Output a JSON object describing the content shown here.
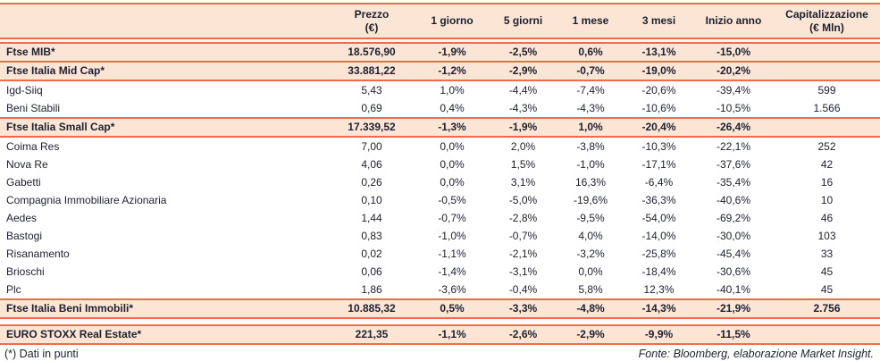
{
  "colors": {
    "accent_border": "#F2694C",
    "row_highlight": "#FBE6D6",
    "text": "#1D1F2E"
  },
  "table": {
    "columns": [
      {
        "l1": "",
        "l2": ""
      },
      {
        "l1": "Prezzo",
        "l2": "(€)"
      },
      {
        "l1": "1 giorno",
        "l2": ""
      },
      {
        "l1": "5 giorni",
        "l2": ""
      },
      {
        "l1": "1 mese",
        "l2": ""
      },
      {
        "l1": "3 mesi",
        "l2": ""
      },
      {
        "l1": "Inizio anno",
        "l2": ""
      },
      {
        "l1": "Capitalizzazione",
        "l2": "(€ Mln)"
      }
    ],
    "rows": [
      {
        "name": "Ftse MIB*",
        "type": "index",
        "values": [
          "18.576,90",
          "-1,9%",
          "-2,5%",
          "0,6%",
          "-13,1%",
          "-15,0%",
          ""
        ]
      },
      {
        "name": "Ftse Italia Mid Cap*",
        "type": "index",
        "values": [
          "33.881,22",
          "-1,2%",
          "-2,9%",
          "-0,7%",
          "-19,0%",
          "-20,2%",
          ""
        ]
      },
      {
        "name": "Igd-Siiq",
        "type": "stock",
        "values": [
          "5,43",
          "1,0%",
          "-4,4%",
          "-7,4%",
          "-20,6%",
          "-39,4%",
          "599"
        ]
      },
      {
        "name": "Beni Stabili",
        "type": "stock",
        "values": [
          "0,69",
          "0,4%",
          "-4,3%",
          "-4,3%",
          "-10,6%",
          "-10,5%",
          "1.566"
        ]
      },
      {
        "name": "Ftse Italia Small Cap*",
        "type": "index",
        "values": [
          "17.339,52",
          "-1,3%",
          "-1,9%",
          "1,0%",
          "-20,4%",
          "-26,4%",
          ""
        ]
      },
      {
        "name": "Coima Res",
        "type": "stock",
        "values": [
          "7,00",
          "0,0%",
          "2,0%",
          "-3,8%",
          "-10,3%",
          "-22,1%",
          "252"
        ]
      },
      {
        "name": "Nova Re",
        "type": "stock",
        "values": [
          "4,06",
          "0,0%",
          "1,5%",
          "-1,0%",
          "-17,1%",
          "-37,6%",
          "42"
        ]
      },
      {
        "name": "Gabetti",
        "type": "stock",
        "values": [
          "0,26",
          "0,0%",
          "3,1%",
          "16,3%",
          "-6,4%",
          "-35,4%",
          "16"
        ]
      },
      {
        "name": "Compagnia Immobiliare Azionaria",
        "type": "stock",
        "values": [
          "0,10",
          "-0,5%",
          "-5,0%",
          "-19,6%",
          "-36,3%",
          "-40,6%",
          "10"
        ]
      },
      {
        "name": "Aedes",
        "type": "stock",
        "values": [
          "1,44",
          "-0,7%",
          "-2,8%",
          "-9,5%",
          "-54,0%",
          "-69,2%",
          "46"
        ]
      },
      {
        "name": "Bastogi",
        "type": "stock",
        "values": [
          "0,83",
          "-1,0%",
          "-0,7%",
          "4,0%",
          "-14,0%",
          "-30,0%",
          "103"
        ]
      },
      {
        "name": "Risanamento",
        "type": "stock",
        "values": [
          "0,02",
          "-1,1%",
          "-2,1%",
          "-3,2%",
          "-25,8%",
          "-45,4%",
          "33"
        ]
      },
      {
        "name": "Brioschi",
        "type": "stock",
        "values": [
          "0,06",
          "-1,4%",
          "-3,1%",
          "0,0%",
          "-18,4%",
          "-30,6%",
          "45"
        ]
      },
      {
        "name": "Plc",
        "type": "stock",
        "values": [
          "1,86",
          "-3,6%",
          "-0,4%",
          "5,8%",
          "12,3%",
          "-40,1%",
          "45"
        ]
      },
      {
        "name": "Ftse Italia Beni Immobili*",
        "type": "index",
        "values": [
          "10.885,32",
          "0,5%",
          "-3,3%",
          "-4,8%",
          "-14,3%",
          "-21,9%",
          "2.756"
        ]
      },
      {
        "name": "EURO STOXX Real Estate*",
        "type": "index",
        "separated_before": true,
        "values": [
          "221,35",
          "-1,1%",
          "-2,6%",
          "-2,9%",
          "-9,9%",
          "-11,5%",
          ""
        ]
      }
    ]
  },
  "footer": {
    "note": "(*) Dati in punti",
    "source": "Fonte: Bloomberg, elaborazione Market Insight."
  }
}
